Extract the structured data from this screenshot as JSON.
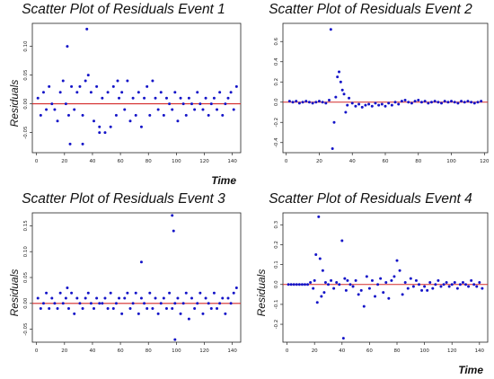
{
  "chart_data": [
    {
      "type": "scatter",
      "title": "Scatter Plot of Residuals Event 1",
      "xlabel": "Time",
      "ylabel": "Residuals",
      "xlim": [
        -3,
        146
      ],
      "ylim": [
        -0.085,
        0.14
      ],
      "xticks": [
        0,
        20,
        40,
        60,
        80,
        100,
        120,
        140
      ],
      "yticks": [
        -0.05,
        0.0,
        0.05,
        0.1
      ],
      "ytick_labels": [
        "-0.05",
        "0.00",
        "0.05",
        "0.10"
      ],
      "hline": 0,
      "series": [
        {
          "x": [
            1,
            3,
            5,
            7,
            9,
            11,
            13,
            15,
            17,
            19,
            21,
            23,
            25,
            27,
            29,
            31,
            33,
            35,
            37,
            39,
            41,
            43,
            45,
            47,
            49,
            51,
            53,
            55,
            57,
            59,
            61,
            63,
            65,
            67,
            69,
            71,
            73,
            75,
            77,
            79,
            81,
            83,
            85,
            87,
            89,
            91,
            93,
            95,
            97,
            99,
            101,
            103,
            105,
            107,
            109,
            111,
            113,
            115,
            117,
            119,
            121,
            123,
            125,
            127,
            129,
            131,
            133,
            135,
            137,
            139,
            141,
            143,
            22,
            36,
            24,
            33,
            45,
            58
          ],
          "y": [
            0.01,
            -0.02,
            0.02,
            -0.01,
            0.03,
            0.0,
            -0.01,
            -0.03,
            0.02,
            0.04,
            0.0,
            -0.02,
            0.03,
            -0.01,
            0.02,
            0.03,
            -0.02,
            0.04,
            0.05,
            0.02,
            -0.03,
            0.03,
            -0.04,
            0.01,
            -0.05,
            0.02,
            -0.04,
            0.03,
            -0.02,
            0.01,
            0.02,
            -0.01,
            0.04,
            -0.03,
            0.01,
            -0.02,
            0.02,
            -0.04,
            0.01,
            0.03,
            -0.02,
            0.04,
            0.01,
            -0.01,
            0.02,
            -0.02,
            0.01,
            0.0,
            -0.01,
            0.02,
            -0.03,
            0.01,
            0.0,
            -0.02,
            0.01,
            0.0,
            -0.01,
            0.02,
            0.0,
            -0.01,
            0.01,
            -0.02,
            0.0,
            0.01,
            -0.01,
            0.02,
            -0.02,
            0.0,
            0.01,
            0.02,
            -0.01,
            0.03,
            0.1,
            0.13,
            -0.07,
            -0.07,
            -0.05,
            0.04
          ]
        }
      ]
    },
    {
      "type": "scatter",
      "title": "Scatter Plot of Residuals Event 2",
      "xlabel": "",
      "ylabel": "",
      "xlim": [
        -2,
        122
      ],
      "ylim": [
        -0.5,
        0.78
      ],
      "xticks": [
        0,
        20,
        40,
        60,
        80,
        100,
        120
      ],
      "yticks": [
        -0.4,
        -0.2,
        0.0,
        0.2,
        0.4,
        0.6
      ],
      "ytick_labels": [
        "-0.4",
        "-0.2",
        "0.0",
        "0.2",
        "0.4",
        "0.6"
      ],
      "hline": 0,
      "series": [
        {
          "x": [
            2,
            4,
            6,
            8,
            10,
            12,
            14,
            16,
            18,
            20,
            22,
            24,
            26,
            27,
            28,
            29,
            30,
            31,
            32,
            33,
            34,
            35,
            36,
            37,
            38,
            40,
            42,
            44,
            46,
            48,
            50,
            52,
            54,
            56,
            58,
            60,
            62,
            64,
            66,
            68,
            70,
            72,
            74,
            76,
            78,
            80,
            82,
            84,
            86,
            88,
            90,
            92,
            94,
            96,
            98,
            100,
            102,
            104,
            106,
            108,
            110,
            112,
            114,
            116,
            118
          ],
          "y": [
            0.01,
            0.0,
            0.01,
            -0.01,
            0.0,
            0.01,
            0.0,
            -0.01,
            0.0,
            0.01,
            0.0,
            -0.01,
            0.02,
            0.72,
            -0.46,
            -0.2,
            0.05,
            0.25,
            0.3,
            0.2,
            0.12,
            0.08,
            -0.1,
            -0.03,
            0.04,
            -0.01,
            -0.04,
            -0.02,
            -0.05,
            -0.03,
            -0.02,
            -0.04,
            -0.01,
            -0.03,
            -0.02,
            -0.04,
            -0.01,
            -0.03,
            0.0,
            -0.02,
            0.01,
            0.02,
            0.0,
            -0.01,
            0.01,
            0.02,
            0.0,
            0.01,
            -0.01,
            0.0,
            0.01,
            0.0,
            -0.01,
            0.01,
            0.0,
            0.01,
            0.0,
            -0.01,
            0.01,
            0.0,
            0.01,
            0.0,
            -0.01,
            0.0,
            0.01
          ]
        }
      ]
    },
    {
      "type": "scatter",
      "title": "Scatter Plot of Residuals Event 3",
      "xlabel": "",
      "ylabel": "Residuals",
      "xlim": [
        -3,
        146
      ],
      "ylim": [
        -0.075,
        0.175
      ],
      "xticks": [
        0,
        20,
        40,
        60,
        80,
        100,
        120,
        140
      ],
      "yticks": [
        -0.05,
        0.0,
        0.05,
        0.1,
        0.15
      ],
      "ytick_labels": [
        "-0.05",
        "0.00",
        "0.05",
        "0.10",
        "0.15"
      ],
      "hline": 0,
      "series": [
        {
          "x": [
            1,
            3,
            5,
            7,
            9,
            11,
            13,
            15,
            17,
            19,
            21,
            23,
            25,
            27,
            29,
            31,
            33,
            35,
            37,
            39,
            41,
            43,
            45,
            47,
            49,
            51,
            53,
            55,
            57,
            59,
            61,
            63,
            65,
            67,
            69,
            71,
            73,
            75,
            77,
            79,
            81,
            83,
            85,
            87,
            89,
            91,
            93,
            95,
            97,
            99,
            101,
            103,
            105,
            107,
            109,
            111,
            113,
            115,
            117,
            119,
            121,
            123,
            125,
            127,
            129,
            131,
            133,
            135,
            137,
            139,
            141,
            143,
            97,
            98,
            99,
            75,
            22
          ],
          "y": [
            0.01,
            -0.01,
            0.0,
            0.02,
            -0.01,
            0.01,
            0.0,
            -0.01,
            0.02,
            0.0,
            0.01,
            -0.01,
            0.02,
            -0.02,
            0.01,
            0.0,
            -0.01,
            0.01,
            0.02,
            0.0,
            -0.01,
            0.01,
            0.0,
            0.0,
            0.01,
            -0.01,
            0.02,
            -0.01,
            0.0,
            0.01,
            -0.02,
            0.01,
            0.02,
            -0.01,
            0.0,
            0.02,
            -0.02,
            0.01,
            0.0,
            -0.01,
            0.02,
            -0.01,
            0.01,
            -0.02,
            0.0,
            0.01,
            -0.01,
            0.02,
            -0.01,
            0.0,
            0.01,
            -0.02,
            0.0,
            0.02,
            -0.03,
            0.01,
            -0.01,
            0.0,
            0.02,
            -0.02,
            0.01,
            0.0,
            -0.01,
            0.02,
            -0.01,
            0.0,
            0.01,
            -0.02,
            0.01,
            0.0,
            0.02,
            0.03,
            0.17,
            0.14,
            -0.07,
            0.08,
            0.03
          ]
        }
      ]
    },
    {
      "type": "scatter",
      "title": "Scatter Plot of Residuals Event 4",
      "xlabel": "Time",
      "ylabel": "Residuals",
      "xlim": [
        -3,
        146
      ],
      "ylim": [
        -0.29,
        0.36
      ],
      "xticks": [
        0,
        20,
        40,
        60,
        80,
        100,
        120,
        140
      ],
      "yticks": [
        -0.2,
        -0.1,
        0.0,
        0.1,
        0.2,
        0.3
      ],
      "ytick_labels": [
        "-0.2",
        "-0.1",
        "0.0",
        "0.1",
        "0.2",
        "0.3"
      ],
      "hline": 0,
      "series": [
        {
          "x": [
            1,
            3,
            5,
            7,
            9,
            11,
            13,
            15,
            17,
            19,
            20,
            21,
            22,
            23,
            24,
            25,
            26,
            27,
            28,
            30,
            32,
            34,
            36,
            38,
            40,
            41,
            42,
            43,
            44,
            46,
            48,
            50,
            52,
            54,
            56,
            58,
            60,
            62,
            64,
            66,
            68,
            70,
            72,
            74,
            76,
            78,
            80,
            82,
            84,
            86,
            88,
            90,
            92,
            94,
            96,
            98,
            100,
            102,
            104,
            106,
            108,
            110,
            112,
            114,
            116,
            118,
            120,
            122,
            124,
            126,
            128,
            130,
            132,
            134,
            136,
            138,
            140,
            142
          ],
          "y": [
            0.0,
            0.0,
            0.0,
            0.0,
            0.0,
            0.0,
            0.0,
            0.0,
            0.01,
            -0.02,
            0.02,
            0.15,
            -0.09,
            0.34,
            0.13,
            -0.06,
            0.07,
            -0.04,
            0.01,
            0.0,
            0.02,
            -0.02,
            0.01,
            0.0,
            0.22,
            -0.27,
            0.03,
            -0.03,
            0.02,
            0.0,
            -0.01,
            0.02,
            -0.05,
            -0.03,
            -0.11,
            0.04,
            -0.02,
            0.02,
            -0.06,
            0.0,
            0.03,
            -0.04,
            0.01,
            -0.07,
            0.02,
            0.04,
            0.12,
            0.07,
            -0.05,
            0.01,
            -0.02,
            0.03,
            -0.01,
            0.02,
            0.0,
            -0.03,
            -0.01,
            -0.03,
            0.01,
            -0.02,
            0.0,
            0.02,
            -0.01,
            0.0,
            0.01,
            -0.01,
            0.0,
            0.01,
            -0.02,
            0.0,
            0.01,
            0.0,
            -0.01,
            0.02,
            0.0,
            -0.01,
            0.01,
            -0.02
          ]
        }
      ]
    }
  ],
  "colors": {
    "points": "#1414c8",
    "zero_line": "#d42a2a",
    "axes": "#222222"
  }
}
